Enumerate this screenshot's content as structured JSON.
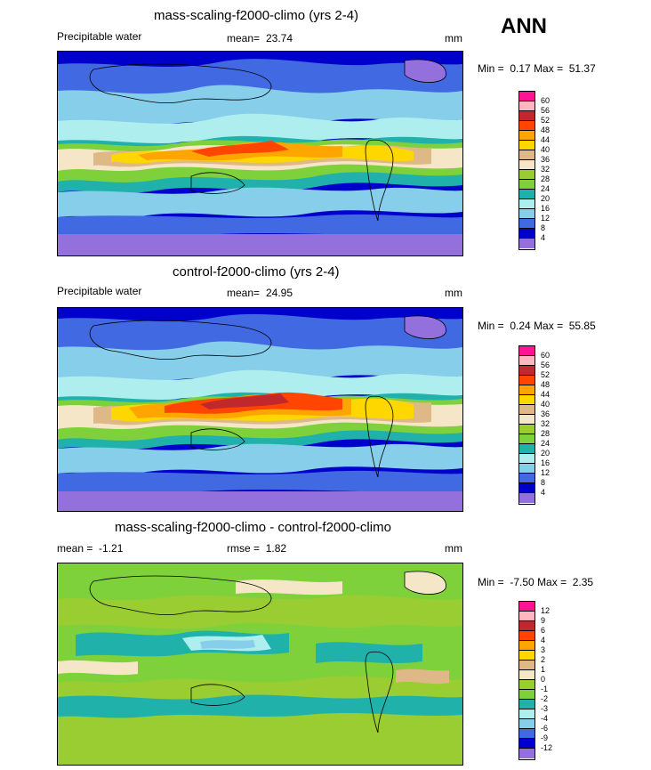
{
  "season": "ANN",
  "panels": [
    {
      "title": "mass-scaling-f2000-climo (yrs 2-4)",
      "left_label": "Precipitable water",
      "mean_label": "mean=",
      "mean_value": "23.74",
      "units": "mm",
      "minmax_label": "Min =",
      "min_value": "0.17",
      "max_label": "Max =",
      "max_value": "51.37",
      "levels": [
        "60",
        "56",
        "52",
        "48",
        "44",
        "40",
        "36",
        "32",
        "28",
        "24",
        "20",
        "16",
        "12",
        "8",
        "4"
      ],
      "colors": [
        "#ff1493",
        "#ffb6c1",
        "#c0282d",
        "#ff4500",
        "#ffa500",
        "#ffd700",
        "#deb887",
        "#f5e6c8",
        "#9acd32",
        "#7fd13b",
        "#20b2aa",
        "#afeeee",
        "#87ceeb",
        "#4169e1",
        "#0000cd",
        "#9370db"
      ]
    },
    {
      "title": "control-f2000-climo (yrs 2-4)",
      "left_label": "Precipitable water",
      "mean_label": "mean=",
      "mean_value": "24.95",
      "units": "mm",
      "minmax_label": "Min =",
      "min_value": "0.24",
      "max_label": "Max =",
      "max_value": "55.85",
      "levels": [
        "60",
        "56",
        "52",
        "48",
        "44",
        "40",
        "36",
        "32",
        "28",
        "24",
        "20",
        "16",
        "12",
        "8",
        "4"
      ],
      "colors": [
        "#ff1493",
        "#ffb6c1",
        "#c0282d",
        "#ff4500",
        "#ffa500",
        "#ffd700",
        "#deb887",
        "#f5e6c8",
        "#9acd32",
        "#7fd13b",
        "#20b2aa",
        "#afeeee",
        "#87ceeb",
        "#4169e1",
        "#0000cd",
        "#9370db"
      ]
    },
    {
      "title": "mass-scaling-f2000-climo - control-f2000-climo",
      "left_label": "mean =",
      "mean_label": "rmse =",
      "mean_value": "1.82",
      "left_value": "-1.21",
      "units": "mm",
      "minmax_label": "Min =",
      "min_value": "-7.50",
      "max_label": "Max =",
      "max_value": "2.35",
      "levels": [
        "12",
        "9",
        "6",
        "4",
        "3",
        "2",
        "1",
        "0",
        "-1",
        "-2",
        "-3",
        "-4",
        "-6",
        "-9",
        "-12"
      ],
      "colors": [
        "#ff1493",
        "#ffb6c1",
        "#c0282d",
        "#ff4500",
        "#ffa500",
        "#ffd700",
        "#deb887",
        "#f5e6c8",
        "#9acd32",
        "#7fd13b",
        "#20b2aa",
        "#afeeee",
        "#87ceeb",
        "#4169e1",
        "#0000cd",
        "#9370db"
      ]
    }
  ]
}
